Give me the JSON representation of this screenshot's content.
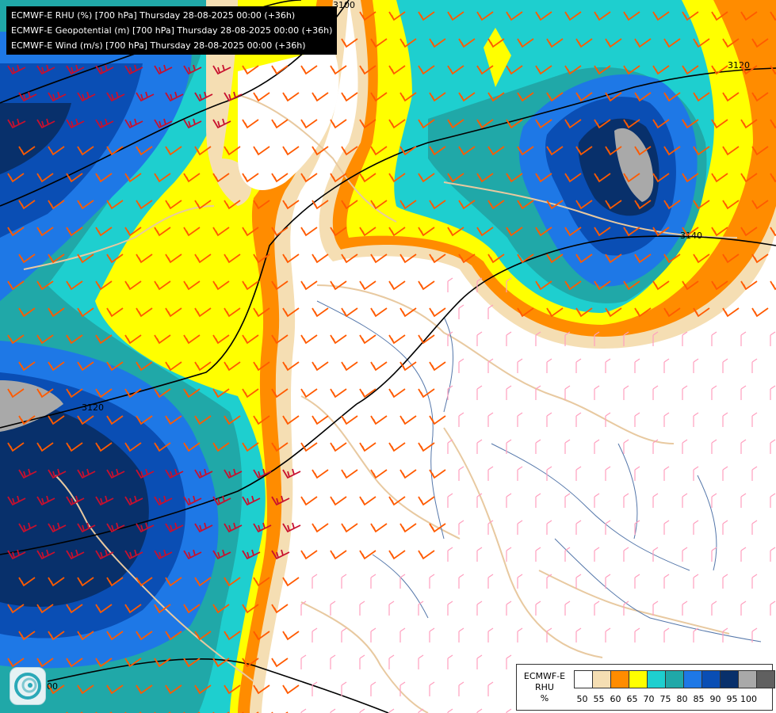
{
  "header": {
    "lines": [
      "ECMWF-E RHU (%) [700 hPa] Thursday 28-08-2025 00:00 (+36h)",
      "ECMWF-E Geopotential (m) [700 hPa] Thursday 28-08-2025 00:00 (+36h)",
      "ECMWF-E Wind (m/s) [700 hPa] Thursday 28-08-2025 00:00 (+36h)"
    ]
  },
  "contour_labels": [
    "3120",
    "3120",
    "3140",
    "3100",
    "3100",
    "3100"
  ],
  "legend": {
    "line1": "ECMWF-E",
    "line2": "RHU",
    "unit": "%",
    "ticks": [
      "50",
      "55",
      "60",
      "65",
      "70",
      "75",
      "80",
      "85",
      "90",
      "95",
      "100"
    ],
    "colors": [
      "#ffffff",
      "#f5deb3",
      "#ff8c00",
      "#ffff00",
      "#1ecfcf",
      "#20a8a8",
      "#1e78e6",
      "#0a4eb4",
      "#08306b",
      "#a9a9a9",
      "#606060"
    ]
  },
  "palette": {
    "wind_high": "#c8102e",
    "wind_mid": "#ff5a00",
    "wind_low": "#ff9fbf",
    "border": "#e8c9a0",
    "river": "#5577aa",
    "contour": "#000000"
  },
  "logo_icon": "ecmwf-swirl-logo-icon"
}
